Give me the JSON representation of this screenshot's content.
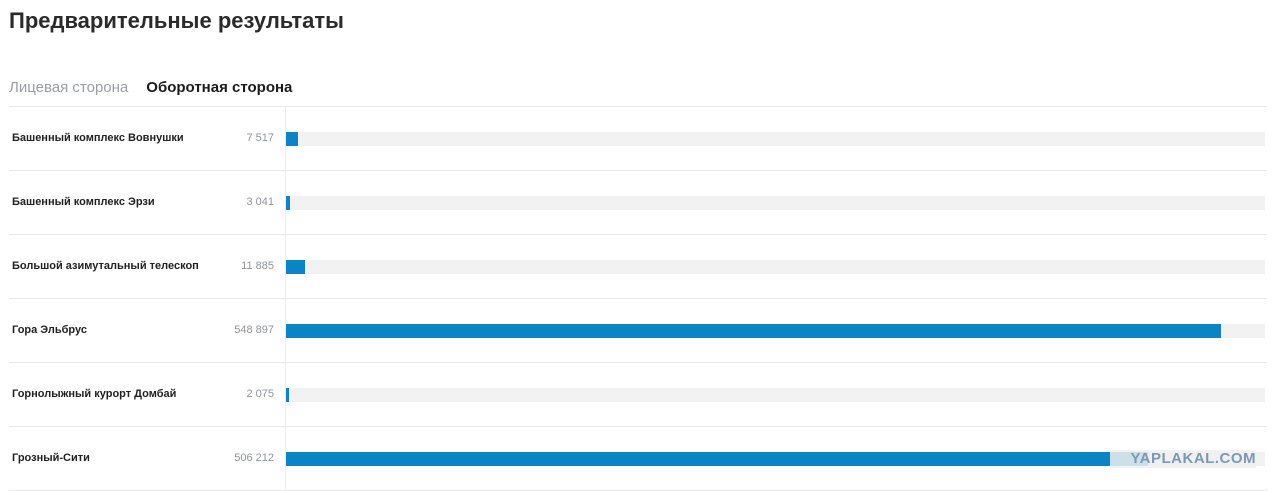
{
  "page": {
    "title": "Предварительные результаты"
  },
  "tabs": [
    {
      "label": "Лицевая сторона",
      "active": false
    },
    {
      "label": "Оборотная сторона",
      "active": true
    }
  ],
  "results": [
    {
      "name": "Башенный комплекс Вовнушки",
      "votes": 7517,
      "votes_label": "7 517"
    },
    {
      "name": "Башенный комплекс Эрзи",
      "votes": 3041,
      "votes_label": "3 041"
    },
    {
      "name": "Большой азимутальный телескоп",
      "votes": 11885,
      "votes_label": "11 885"
    },
    {
      "name": "Гора Эльбрус",
      "votes": 548897,
      "votes_label": "548 897"
    },
    {
      "name": "Горнолыжный курорт Домбай",
      "votes": 2075,
      "votes_label": "2 075"
    },
    {
      "name": "Грозный-Сити",
      "votes": 506212,
      "votes_label": "506 212"
    }
  ],
  "colors": {
    "bar": "#0a84c6",
    "track": "#f2f2f2"
  },
  "watermark": "YAPLAKAL.COM"
}
